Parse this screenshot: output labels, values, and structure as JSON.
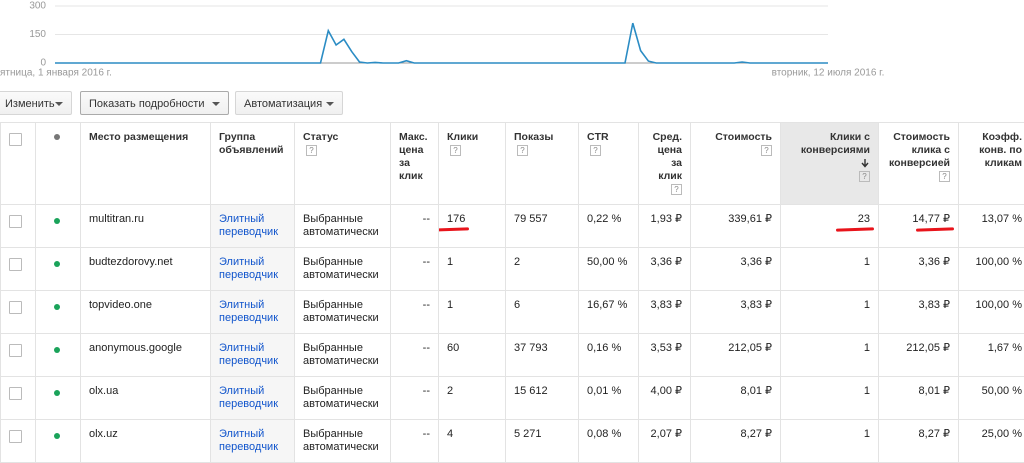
{
  "chart": {
    "type": "line",
    "color": "#2b8cc4",
    "ylim": [
      0,
      300
    ],
    "yticks": [
      0,
      150,
      300
    ],
    "grid": true,
    "start_label": "ятница, 1 января 2016 г.",
    "end_label": "вторник, 12 июля 2016 г.",
    "values": [
      0,
      0,
      0,
      0,
      0,
      0,
      0,
      0,
      0,
      0,
      0,
      0,
      0,
      0,
      0,
      0,
      0,
      0,
      0,
      0,
      0,
      0,
      0,
      0,
      0,
      0,
      0,
      0,
      0,
      0,
      0,
      0,
      0,
      0,
      0,
      170,
      95,
      125,
      60,
      5,
      0,
      3,
      0,
      0,
      0,
      12,
      0,
      0,
      0,
      0,
      0,
      0,
      0,
      0,
      0,
      0,
      0,
      0,
      0,
      0,
      0,
      0,
      0,
      0,
      0,
      0,
      0,
      0,
      0,
      0,
      0,
      0,
      0,
      0,
      210,
      65,
      10,
      0,
      0,
      0,
      0,
      0,
      0,
      0,
      0,
      0,
      0,
      0,
      5,
      0,
      0,
      0,
      0,
      0,
      0,
      0,
      0,
      0,
      0,
      0
    ]
  },
  "toolbar": {
    "buttons": [
      "Изменить",
      "Показать подробности",
      "Автоматизация"
    ]
  },
  "table": {
    "help_icon": "?",
    "headers": [
      {
        "text": "Место размещения",
        "help": false
      },
      {
        "text": "Группа объявлений",
        "help": false
      },
      {
        "text": "Статус",
        "help": true
      },
      {
        "text": "Макс. цена за клик",
        "help": false
      },
      {
        "text": "Клики",
        "help": true
      },
      {
        "text": "Показы",
        "help": true
      },
      {
        "text": "CTR",
        "help": true
      },
      {
        "text": "Сред. цена за клик",
        "help": true
      },
      {
        "text": "Стоимость",
        "help": true
      },
      {
        "text": "Клики с конверсиями",
        "help": true,
        "sorted": true
      },
      {
        "text": "Стоимость клика с конверсией",
        "help": true
      },
      {
        "text": "Коэфф. конв. по кликам",
        "help": false
      }
    ],
    "rows": [
      [
        "multitran.ru",
        "Элитный переводчик",
        "Выбранные автоматически",
        "--",
        "176",
        "79 557",
        "0,22 %",
        "1,93 ₽",
        "339,61 ₽",
        "23",
        "14,77 ₽",
        "13,07 %"
      ],
      [
        "budtezdorovy.net",
        "Элитный переводчик",
        "Выбранные автоматически",
        "--",
        "1",
        "2",
        "50,00 %",
        "3,36 ₽",
        "3,36 ₽",
        "1",
        "3,36 ₽",
        "100,00 %"
      ],
      [
        "topvideo.one",
        "Элитный переводчик",
        "Выбранные автоматически",
        "--",
        "1",
        "6",
        "16,67 %",
        "3,83 ₽",
        "3,83 ₽",
        "1",
        "3,83 ₽",
        "100,00 %"
      ],
      [
        "anonymous.google",
        "Элитный переводчик",
        "Выбранные автоматически",
        "--",
        "60",
        "37 793",
        "0,16 %",
        "3,53 ₽",
        "212,05 ₽",
        "1",
        "212,05 ₽",
        "1,67 %"
      ],
      [
        "olx.ua",
        "Элитный переводчик",
        "Выбранные автоматически",
        "--",
        "2",
        "15 612",
        "0,01 %",
        "4,00 ₽",
        "8,01 ₽",
        "1",
        "8,01 ₽",
        "50,00 %"
      ],
      [
        "olx.uz",
        "Элитный переводчик",
        "Выбранные автоматически",
        "--",
        "4",
        "5 271",
        "0,08 %",
        "2,07 ₽",
        "8,27 ₽",
        "1",
        "8,27 ₽",
        "25,00 %"
      ]
    ],
    "highlighted": [
      [
        0,
        4
      ],
      [
        0,
        9
      ],
      [
        0,
        10
      ]
    ]
  }
}
